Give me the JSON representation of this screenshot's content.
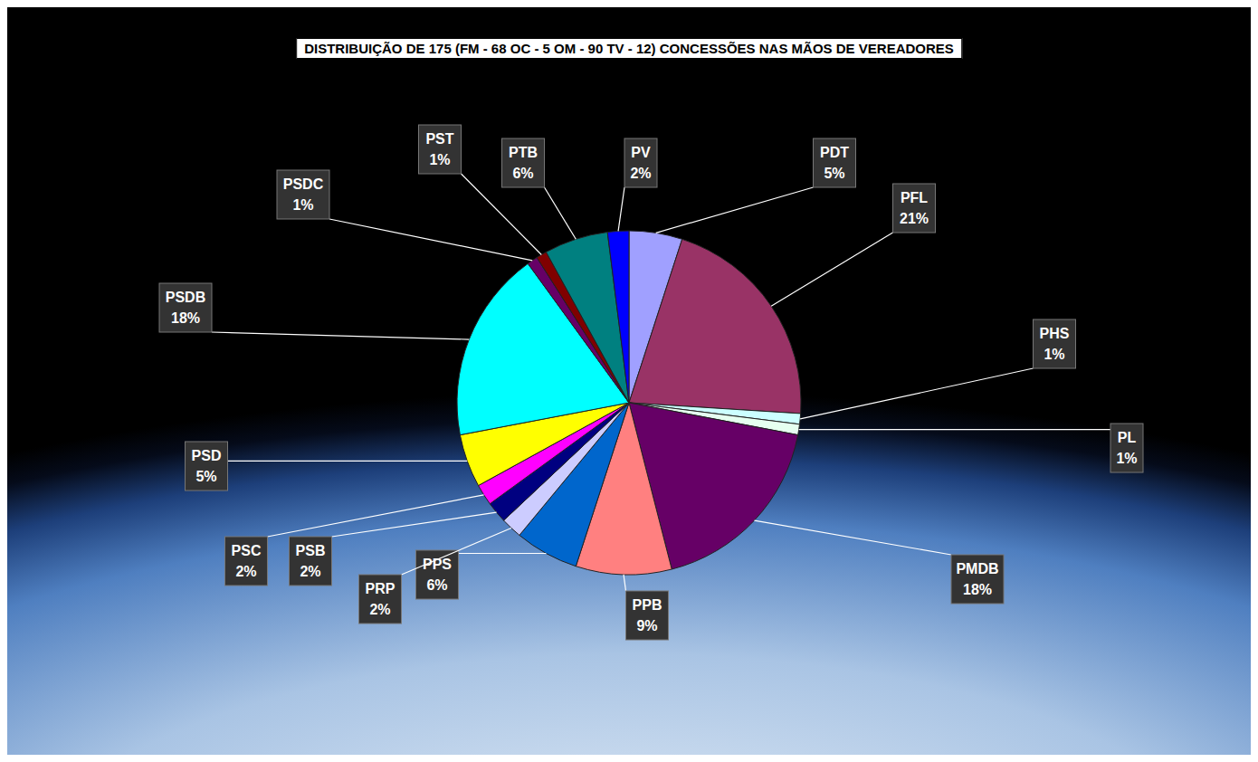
{
  "chart_data": {
    "type": "pie",
    "title": "DISTRIBUIÇÃO DE 175 (FM - 68  OC - 5 OM - 90 TV - 12) CONCESSÕES NAS MÃOS DE VEREADORES",
    "categories": [
      "PDT",
      "PFL",
      "PHS",
      "PL",
      "PMDB",
      "PPB",
      "PPS",
      "PRP",
      "PSB",
      "PSC",
      "PSD",
      "PSDB",
      "PSDC",
      "PST",
      "PTB",
      "PV"
    ],
    "values": [
      5,
      21,
      1,
      1,
      18,
      9,
      6,
      2,
      2,
      2,
      5,
      18,
      1,
      1,
      6,
      2
    ],
    "value_labels": [
      "5%",
      "21%",
      "1%",
      "1%",
      "18%",
      "9%",
      "6%",
      "2%",
      "2%",
      "2%",
      "5%",
      "18%",
      "1%",
      "1%",
      "6%",
      "2%"
    ],
    "colors": [
      "#a0a0ff",
      "#993366",
      "#ccffff",
      "#e6fff0",
      "#660066",
      "#ff8080",
      "#0066cc",
      "#ccccff",
      "#000080",
      "#ff00ff",
      "#ffff00",
      "#00ffff",
      "#660066",
      "#800000",
      "#008080",
      "#0000ff"
    ],
    "data_labels": true
  }
}
